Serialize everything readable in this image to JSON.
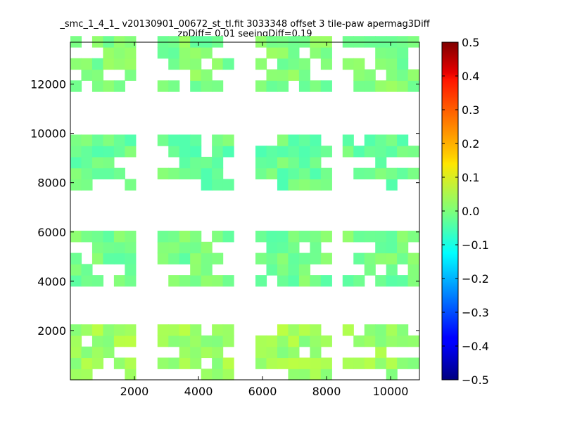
{
  "chart_data": {
    "type": "heatmap",
    "title": "_smc_1_4_1_ v20130901_00672_st_tl.fit 3033348 offset 3 tile-paw apermag3Diff",
    "subtitle": "zpDiff= 0.01 seeingDiff=0.19",
    "xlim": [
      0,
      10900
    ],
    "ylim": [
      0,
      13700
    ],
    "x_ticks": [
      2000,
      4000,
      6000,
      8000,
      10000
    ],
    "x_tick_labels": [
      "2000",
      "4000",
      "6000",
      "8000",
      "10000"
    ],
    "y_ticks": [
      2000,
      4000,
      6000,
      8000,
      10000,
      12000
    ],
    "y_tick_labels": [
      "2000",
      "4000",
      "6000",
      "8000",
      "10000",
      "12000"
    ],
    "colorbar": {
      "colormap": "jet",
      "range": [
        -0.5,
        0.5
      ],
      "ticks": [
        0.5,
        0.4,
        0.3,
        0.2,
        0.1,
        0.0,
        -0.1,
        -0.2,
        -0.3,
        -0.4,
        -0.5
      ],
      "tick_labels": [
        "0.5",
        "0.4",
        "0.3",
        "0.2",
        "0.1",
        "0.0",
        "−0.1",
        "−0.2",
        "−0.3",
        "−0.4",
        "−0.5"
      ]
    },
    "cell_size": [
      340,
      450
    ],
    "column_groups": [
      {
        "x_start": 0,
        "n_cols": 6
      },
      {
        "x_start": 2720,
        "n_cols": 7
      },
      {
        "x_start": 5780,
        "n_cols": 7
      },
      {
        "x_start": 8500,
        "n_cols": 7
      }
    ],
    "row_bands": [
      {
        "y_start": 0,
        "n_rows": 5,
        "bias": 0.03
      },
      {
        "y_start": 3800,
        "n_rows": 5,
        "bias": -0.01
      },
      {
        "y_start": 7700,
        "n_rows": 5,
        "bias": -0.02
      },
      {
        "y_start": 11700,
        "n_rows": 5,
        "bias": 0.0
      }
    ],
    "missing_cells": [
      [
        0,
        0,
        2
      ],
      [
        0,
        0,
        3
      ],
      [
        0,
        0,
        4
      ],
      [
        0,
        1,
        3
      ],
      [
        0,
        1,
        4
      ],
      [
        0,
        5,
        3
      ],
      [
        0,
        2,
        4
      ],
      [
        0,
        2,
        5
      ],
      [
        0,
        2,
        6
      ],
      [
        0,
        3,
        0
      ],
      [
        0,
        3,
        1
      ],
      [
        1,
        0,
        0
      ],
      [
        1,
        0,
        1
      ],
      [
        1,
        0,
        2
      ],
      [
        1,
        0,
        3
      ],
      [
        1,
        1,
        0
      ],
      [
        1,
        1,
        1
      ],
      [
        1,
        1,
        2
      ],
      [
        1,
        2,
        0
      ],
      [
        1,
        2,
        1
      ],
      [
        1,
        5,
        0
      ],
      [
        1,
        5,
        1
      ],
      [
        1,
        5,
        2
      ],
      [
        1,
        1,
        5
      ],
      [
        1,
        1,
        6
      ],
      [
        1,
        2,
        6
      ],
      [
        1,
        3,
        5
      ],
      [
        1,
        3,
        6
      ],
      [
        1,
        4,
        4
      ],
      [
        1,
        1,
        1
      ],
      [
        2,
        0,
        0
      ],
      [
        2,
        0,
        1
      ],
      [
        2,
        1,
        0
      ],
      [
        2,
        3,
        0
      ],
      [
        2,
        4,
        0
      ],
      [
        2,
        4,
        1
      ],
      [
        2,
        5,
        2
      ],
      [
        2,
        5,
        3
      ],
      [
        2,
        5,
        4
      ],
      [
        2,
        5,
        5
      ],
      [
        2,
        5,
        6
      ],
      [
        2,
        1,
        6
      ],
      [
        2,
        1,
        5
      ],
      [
        2,
        2,
        6
      ],
      [
        2,
        3,
        4
      ],
      [
        2,
        4,
        6
      ],
      [
        3,
        0,
        0
      ],
      [
        3,
        0,
        1
      ],
      [
        3,
        0,
        2
      ],
      [
        3,
        1,
        0
      ],
      [
        3,
        2,
        0
      ],
      [
        3,
        2,
        1
      ],
      [
        3,
        3,
        0
      ],
      [
        3,
        3,
        1
      ],
      [
        3,
        3,
        2
      ],
      [
        3,
        4,
        1
      ],
      [
        3,
        0,
        5
      ],
      [
        3,
        0,
        6
      ],
      [
        3,
        0,
        3
      ],
      [
        3,
        1,
        3
      ],
      [
        3,
        2,
        4
      ],
      [
        3,
        2,
        5
      ],
      [
        3,
        2,
        6
      ],
      [
        3,
        4,
        6
      ],
      [
        3,
        3,
        6
      ],
      [
        3,
        2,
        2
      ]
    ]
  }
}
